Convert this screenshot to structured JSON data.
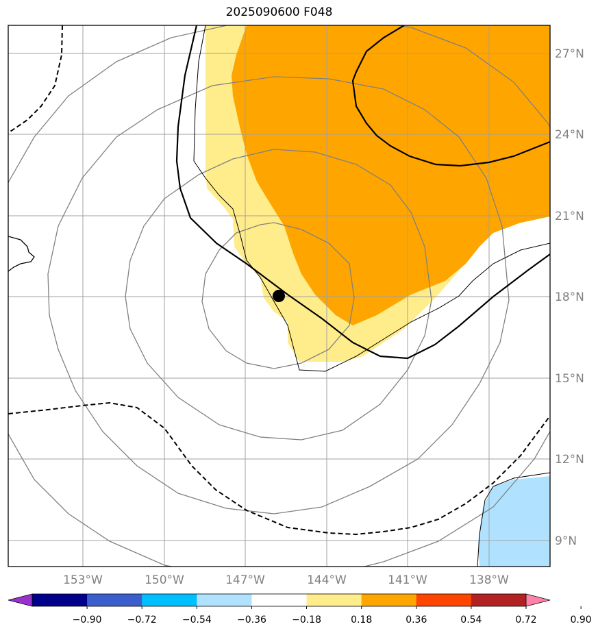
{
  "title": "2025090600 F048",
  "map": {
    "lon_labels": [
      "153°W",
      "150°W",
      "147°W",
      "144°W",
      "141°W",
      "138°W"
    ],
    "lat_labels": [
      "27°N",
      "24°N",
      "21°N",
      "18°N",
      "15°N",
      "12°N",
      "9°N"
    ]
  },
  "colorbar": {
    "labels": [
      "−0.90",
      "−0.72",
      "−0.54",
      "−0.36",
      "−0.18",
      "0.18",
      "0.36",
      "0.54",
      "0.72",
      "0.90"
    ],
    "colors": [
      "#9932cc",
      "#00008b",
      "#3a5fcd",
      "#00bfff",
      "#b0e2ff",
      "#ffffff",
      "#ffec8b",
      "#ffa500",
      "#ff4500",
      "#b22222",
      "#ff82ab"
    ]
  }
}
